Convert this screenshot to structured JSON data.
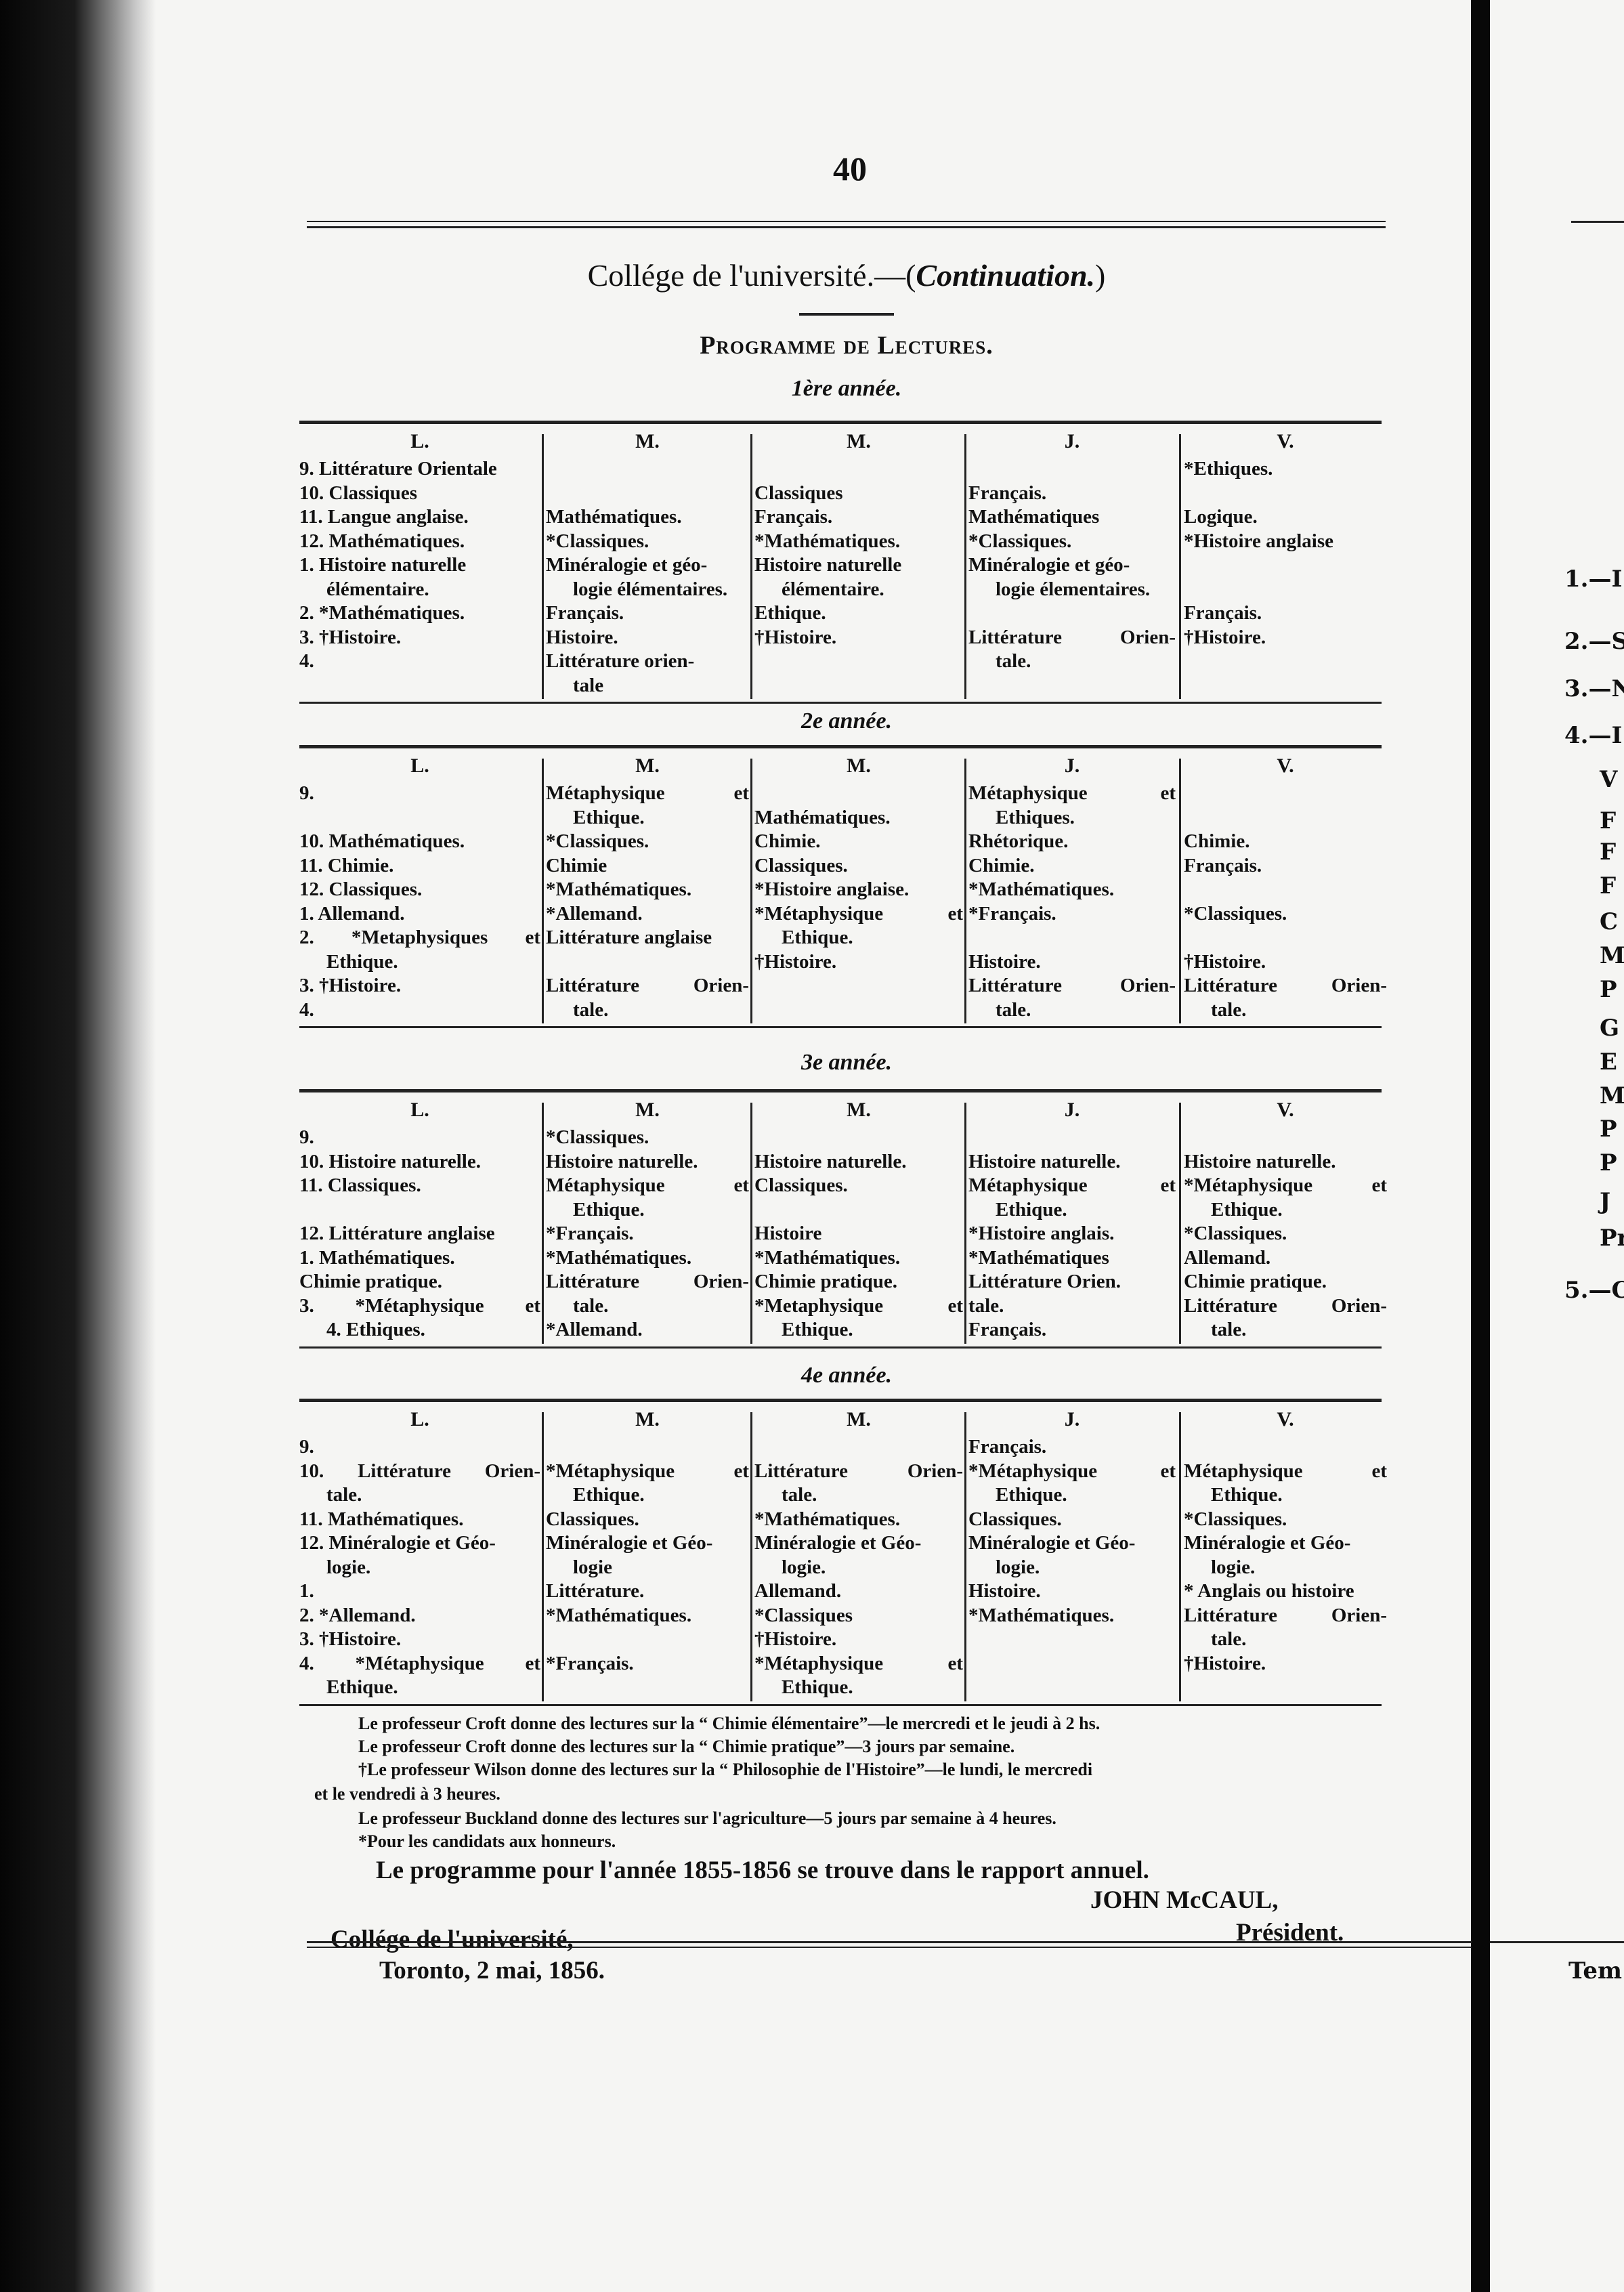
{
  "page_number": "40",
  "title_main": "Collége de l'université.—(",
  "title_italic": "Continuation.",
  "title_close": ")",
  "subtitle": "Programme de Lectures.",
  "tables": [
    {
      "year": "1ère année.",
      "columns": [
        {
          "header": "L.",
          "lines": [
            "9. Littérature Orientale",
            "10. Classiques",
            "11. Langue anglaise.",
            "12. Mathématiques.",
            "1. Histoire naturelle",
            "élémentaire.",
            "2. *Mathématiques.",
            "3. †Histoire.",
            "4.",
            ""
          ]
        },
        {
          "header": "M.",
          "lines": [
            "",
            "",
            "Mathématiques.",
            "*Classiques.",
            "Minéralogie et géo-",
            "logie élémentaires.",
            "Français.",
            "Histoire.",
            "Littérature orien-",
            "tale"
          ]
        },
        {
          "header": "M.",
          "lines": [
            "",
            "Classiques",
            "Français.",
            "*Mathématiques.",
            "Histoire naturelle",
            "élémentaire.",
            "Ethique.",
            "†Histoire.",
            "",
            ""
          ]
        },
        {
          "header": "J.",
          "lines": [
            "",
            "Français.",
            "Mathématiques",
            "*Classiques.",
            "Minéralogie et géo-",
            "logie élementaires.",
            "",
            "Littérature Orien-",
            "tale.",
            ""
          ]
        },
        {
          "header": "V.",
          "lines": [
            "*Ethiques.",
            "",
            "Logique.",
            "*Histoire anglaise",
            "",
            "",
            "Français.",
            "†Histoire.",
            "",
            ""
          ]
        }
      ]
    },
    {
      "year": "2e année.",
      "columns": [
        {
          "header": "L.",
          "lines": [
            "9.",
            "",
            "10. Mathématiques.",
            "11. Chimie.",
            "12. Classiques.",
            "1. Allemand.",
            "2. *Metaphysiques et",
            "Ethique.",
            "3. †Histoire.",
            "4."
          ]
        },
        {
          "header": "M.",
          "lines": [
            "Métaphysique et",
            "Ethique.",
            "*Classiques.",
            "Chimie",
            "*Mathématiques.",
            "*Allemand.",
            "Littérature anglaise",
            "",
            "Littérature Orien-",
            "tale."
          ]
        },
        {
          "header": "M.",
          "lines": [
            "",
            "Mathématiques.",
            "Chimie.",
            "Classiques.",
            "*Histoire anglaise.",
            "*Métaphysique et",
            "Ethique.",
            "†Histoire.",
            "",
            ""
          ]
        },
        {
          "header": "J.",
          "lines": [
            "Métaphysique et",
            "Ethiques.",
            "Rhétorique.",
            "Chimie.",
            "*Mathématiques.",
            "*Français.",
            "",
            "Histoire.",
            "Littérature Orien-",
            "tale."
          ]
        },
        {
          "header": "V.",
          "lines": [
            "",
            "",
            "Chimie.",
            "Français.",
            "",
            "*Classiques.",
            "",
            "†Histoire.",
            "Littérature Orien-",
            "tale."
          ]
        }
      ]
    },
    {
      "year": "3e année.",
      "columns": [
        {
          "header": "L.",
          "lines": [
            "9.",
            "10. Histoire naturelle.",
            "11. Classiques.",
            "",
            "12. Littérature anglaise",
            "1. Mathématiques.",
            "Chimie pratique.",
            "3. *Métaphysique et",
            "4. Ethiques."
          ]
        },
        {
          "header": "M.",
          "lines": [
            "*Classiques.",
            "Histoire naturelle.",
            "Métaphysique et",
            "Ethique.",
            "*Français.",
            "*Mathématiques.",
            "Littérature Orien-",
            "tale.",
            "*Allemand."
          ]
        },
        {
          "header": "M.",
          "lines": [
            "",
            "Histoire naturelle.",
            "Classiques.",
            "",
            "Histoire",
            "*Mathématiques.",
            "Chimie pratique.",
            "*Metaphysique et",
            "Ethique."
          ]
        },
        {
          "header": "J.",
          "lines": [
            "",
            "Histoire naturelle.",
            "Métaphysique et",
            "Ethique.",
            "*Histoire anglais.",
            "*Mathématiques",
            "Littérature Orien.",
            "tale.",
            "Français."
          ]
        },
        {
          "header": "V.",
          "lines": [
            "",
            "Histoire naturelle.",
            "*Métaphysique et",
            "Ethique.",
            "*Classiques.",
            "Allemand.",
            "Chimie pratique.",
            "Littérature Orien-",
            "tale."
          ]
        }
      ]
    },
    {
      "year": "4e année.",
      "columns": [
        {
          "header": "L.",
          "lines": [
            "9.",
            "10. Littérature Orien-",
            "tale.",
            "11. Mathématiques.",
            "12. Minéralogie et Géo-",
            "logie.",
            "1.",
            "2. *Allemand.",
            "3. †Histoire.",
            "4. *Métaphysique et",
            "Ethique."
          ]
        },
        {
          "header": "M.",
          "lines": [
            "",
            "*Métaphysique et",
            "Ethique.",
            "Classiques.",
            "Minéralogie et Géo-",
            "logie",
            "Littérature.",
            "*Mathématiques.",
            "",
            "*Français.",
            ""
          ]
        },
        {
          "header": "M.",
          "lines": [
            "",
            "Littérature Orien-",
            "tale.",
            "*Mathématiques.",
            "Minéralogie et Géo-",
            "logie.",
            "Allemand.",
            "*Classiques",
            "†Histoire.",
            "*Métaphysique et",
            "Ethique."
          ]
        },
        {
          "header": "J.",
          "lines": [
            "Français.",
            "*Métaphysique et",
            "Ethique.",
            "Classiques.",
            "Minéralogie et Géo-",
            "logie.",
            "Histoire.",
            "*Mathématiques.",
            "",
            "",
            ""
          ]
        },
        {
          "header": "V.",
          "lines": [
            "",
            "Métaphysique et",
            "Ethique.",
            "*Classiques.",
            "Minéralogie et Géo-",
            "logie.",
            "* Anglais ou histoire",
            "Littérature Orien-",
            "tale.",
            "†Histoire.",
            ""
          ]
        }
      ]
    }
  ],
  "notes": [
    "Le professeur Croft donne des lectures sur la “ Chimie élémentaire”—le mercredi et le jeudi à 2 hs.",
    "Le professeur Croft donne des lectures sur la “ Chimie pratique”—3 jours par semaine.",
    "†Le professeur Wilson donne des lectures sur la “ Philosophie de l'Histoire”—le lundi, le mercredi",
    "et le vendredi à 3 heures.",
    "Le professeur Buckland donne des lectures sur l'agriculture—5 jours par semaine à 4 heures.",
    "*Pour les candidats aux honneurs."
  ],
  "programme_note": "Le programme pour l'année 1855-1856 se trouve dans le rapport annuel.",
  "signature": {
    "name": "JOHN McCAUL,",
    "role": "Président."
  },
  "place": {
    "line1": "Collége de l'université,",
    "line2": "Toronto, 2 mai, 1856."
  },
  "facing_page": {
    "lines": [
      "1.—I",
      "2.—S",
      "3.—N",
      "4.—I",
      "V",
      "F",
      "F",
      "F",
      "C",
      "M",
      "P",
      "G",
      "E",
      "M",
      "P",
      "P",
      "J",
      "Pr",
      "5.—C"
    ],
    "bottom": "Tem"
  }
}
